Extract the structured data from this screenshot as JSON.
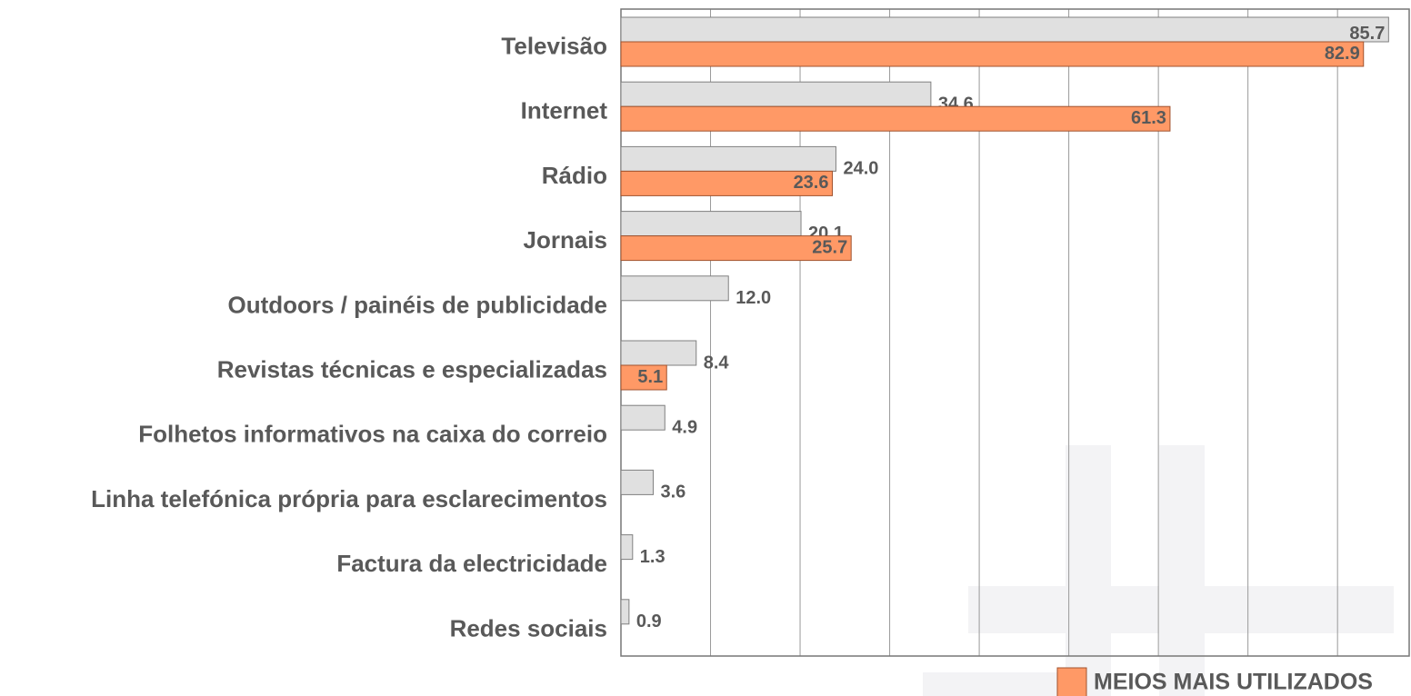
{
  "chart_data": {
    "type": "hbar",
    "categories": [
      "Televisão",
      "Internet",
      "Rádio",
      "Jornais",
      "Outdoors / painéis de publicidade",
      "Revistas técnicas e especializadas",
      "Folhetos informativos na caixa do correio",
      "Linha telefónica própria para esclarecimentos",
      "Factura da electricidade",
      "Redes sociais"
    ],
    "series": [
      {
        "color": "#e0e0e0",
        "values": [
          85.7,
          34.6,
          24.0,
          20.1,
          12.0,
          8.4,
          4.9,
          3.6,
          1.3,
          0.9
        ],
        "value_labels": [
          "85.7",
          "34.6",
          "24.0",
          "20.1",
          "12.0",
          "8.4",
          "4.9",
          "3.6",
          "1.3",
          "0.9"
        ]
      },
      {
        "name": "MEIOS MAIS UTILIZADOS",
        "color": "#ff9966",
        "values": [
          82.9,
          61.3,
          23.6,
          25.7,
          null,
          5.1,
          null,
          null,
          null,
          null
        ],
        "value_labels": [
          "82.9",
          "61.3",
          "23.6",
          "25.7",
          null,
          "5.1",
          null,
          null,
          null,
          null
        ]
      }
    ],
    "xlim": [
      0,
      88
    ],
    "xticks": [
      0,
      10,
      20,
      30,
      40,
      50,
      60,
      70,
      80
    ],
    "grid": true
  }
}
